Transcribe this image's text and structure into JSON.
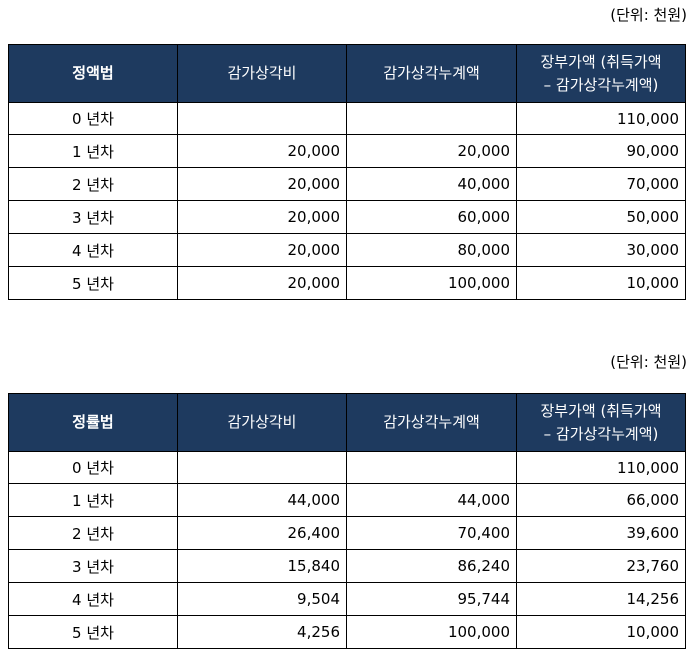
{
  "tables": [
    {
      "unit_label": "(단위: 천원)",
      "headers": [
        "정액법",
        "감가상각비",
        "감가상각누계액",
        "장부가액 (취득가액",
        "– 감가상각누계액)"
      ],
      "rows": [
        [
          "0 년차",
          "",
          "",
          "110,000"
        ],
        [
          "1 년차",
          "20,000",
          "20,000",
          "90,000"
        ],
        [
          "2 년차",
          "20,000",
          "40,000",
          "70,000"
        ],
        [
          "3 년차",
          "20,000",
          "60,000",
          "50,000"
        ],
        [
          "4 년차",
          "20,000",
          "80,000",
          "30,000"
        ],
        [
          "5 년차",
          "20,000",
          "100,000",
          "10,000"
        ]
      ]
    },
    {
      "unit_label": "(단위: 천원)",
      "headers": [
        "정률법",
        "감가상각비",
        "감가상각누계액",
        "장부가액 (취득가액",
        "– 감가상각누계액)"
      ],
      "rows": [
        [
          "0 년차",
          "",
          "",
          "110,000"
        ],
        [
          "1 년차",
          "44,000",
          "44,000",
          "66,000"
        ],
        [
          "2 년차",
          "26,400",
          "70,400",
          "39,600"
        ],
        [
          "3 년차",
          "15,840",
          "86,240",
          "23,760"
        ],
        [
          "4 년차",
          "9,504",
          "95,744",
          "14,256"
        ],
        [
          "5 년차",
          "4,256",
          "100,000",
          "10,000"
        ]
      ]
    }
  ]
}
